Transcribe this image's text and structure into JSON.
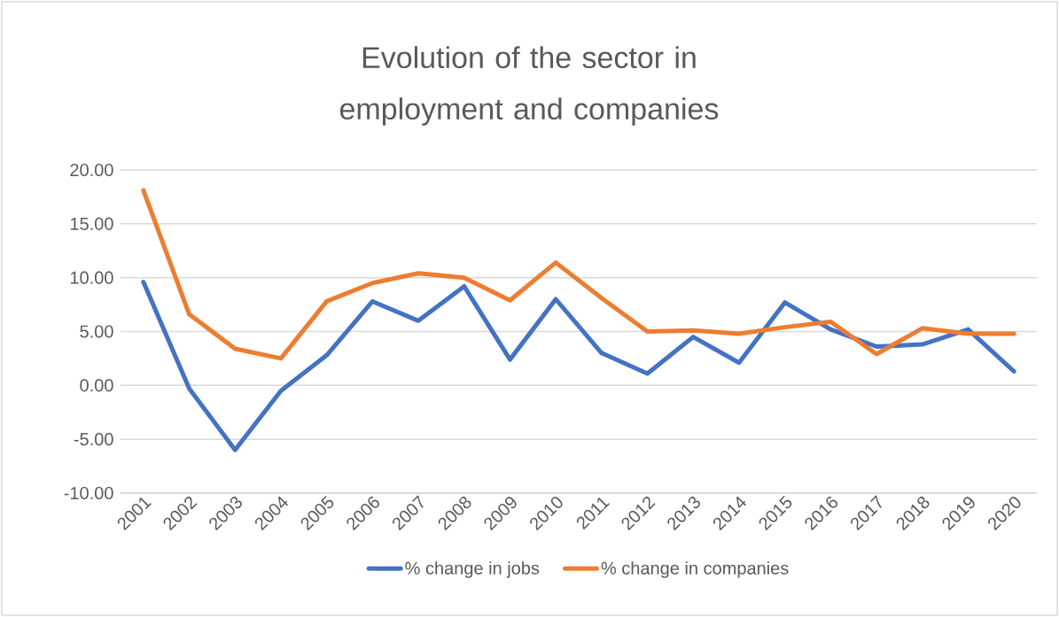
{
  "chart_data": {
    "type": "line",
    "title": "Evolution of the sector in employment and companies",
    "categories": [
      "2001",
      "2002",
      "2003",
      "2004",
      "2005",
      "2006",
      "2007",
      "2008",
      "2009",
      "2010",
      "2011",
      "2012",
      "2013",
      "2014",
      "2015",
      "2016",
      "2017",
      "2018",
      "2019",
      "2020"
    ],
    "series": [
      {
        "name": "% change in jobs",
        "color": "#4472c4",
        "values": [
          9.6,
          -0.3,
          -6.0,
          -0.5,
          2.8,
          7.8,
          6.0,
          9.2,
          2.4,
          8.0,
          3.0,
          1.1,
          4.5,
          2.1,
          7.7,
          5.2,
          3.6,
          3.8,
          5.2,
          1.3
        ]
      },
      {
        "name": "% change in companies",
        "color": "#ed7d31",
        "values": [
          18.1,
          6.6,
          3.4,
          2.5,
          7.8,
          9.5,
          10.4,
          10.0,
          7.9,
          11.4,
          8.1,
          5.0,
          5.1,
          4.8,
          5.4,
          5.9,
          2.9,
          5.3,
          4.8,
          4.8
        ]
      }
    ],
    "ylim": [
      -10,
      20
    ],
    "yticks": [
      {
        "value": -10,
        "label": "-10.00"
      },
      {
        "value": -5,
        "label": "-5.00"
      },
      {
        "value": 0,
        "label": "0.00"
      },
      {
        "value": 5,
        "label": "5.00"
      },
      {
        "value": 10,
        "label": "10.00"
      },
      {
        "value": 15,
        "label": "15.00"
      },
      {
        "value": 20,
        "label": "20.00"
      }
    ],
    "grid": "y",
    "legend": "bottom",
    "marker": "none",
    "line_style": "solid"
  }
}
